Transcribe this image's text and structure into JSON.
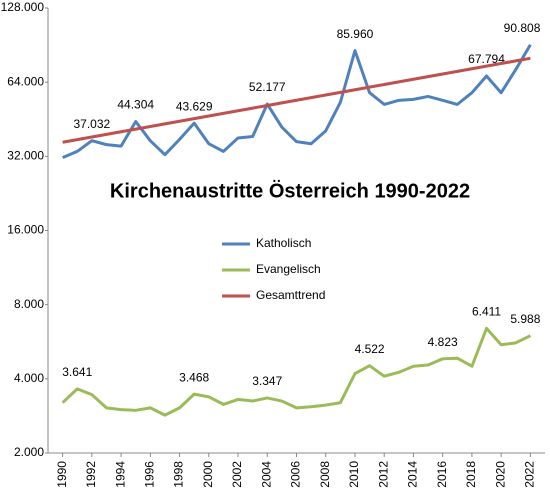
{
  "chart_data": {
    "type": "line",
    "title": "Kirchenaustritte Österreich 1990-2022",
    "x": [
      1990,
      1991,
      1992,
      1993,
      1994,
      1995,
      1996,
      1997,
      1998,
      1999,
      2000,
      2001,
      2002,
      2003,
      2004,
      2005,
      2006,
      2007,
      2008,
      2009,
      2010,
      2011,
      2012,
      2013,
      2014,
      2015,
      2016,
      2017,
      2018,
      2019,
      2020,
      2021,
      2022
    ],
    "xlim": [
      1989,
      2023
    ],
    "xticks": [
      1990,
      1992,
      1994,
      1996,
      1998,
      2000,
      2002,
      2004,
      2006,
      2008,
      2010,
      2012,
      2014,
      2016,
      2018,
      2020,
      2022
    ],
    "ylim": [
      2000,
      128000
    ],
    "log_scale": true,
    "yticks": [
      {
        "value": 2000,
        "label": "2.000"
      },
      {
        "value": 4000,
        "label": "4.000"
      },
      {
        "value": 8000,
        "label": "8.000"
      },
      {
        "value": 16000,
        "label": "16.000"
      },
      {
        "value": 32000,
        "label": "32.000"
      },
      {
        "value": 64000,
        "label": "64.000"
      },
      {
        "value": 128000,
        "label": "128.000"
      }
    ],
    "grid": false,
    "series": [
      {
        "name": "Katholisch",
        "color": "#4f81bd",
        "values": [
          31600,
          33500,
          37032,
          35700,
          35200,
          44304,
          37000,
          32500,
          37500,
          43629,
          36000,
          33500,
          38000,
          38500,
          52177,
          42000,
          36700,
          36000,
          40600,
          53000,
          85960,
          58000,
          52000,
          54000,
          54500,
          56000,
          54000,
          52000,
          58000,
          67794,
          58000,
          72000,
          90808
        ],
        "value_labels": [
          null,
          null,
          "37.032",
          null,
          null,
          "44.304",
          null,
          null,
          null,
          "43.629",
          null,
          null,
          null,
          null,
          "52.177",
          null,
          null,
          null,
          null,
          null,
          "85.960",
          null,
          null,
          null,
          null,
          null,
          null,
          null,
          null,
          "67.794",
          null,
          null,
          "90.808"
        ]
      },
      {
        "name": "Evangelisch",
        "color": "#9bbb59",
        "values": [
          3200,
          3641,
          3450,
          3050,
          3000,
          2980,
          3050,
          2850,
          3050,
          3468,
          3380,
          3150,
          3300,
          3250,
          3347,
          3250,
          3050,
          3080,
          3130,
          3200,
          4200,
          4522,
          4100,
          4250,
          4500,
          4550,
          4823,
          4850,
          4500,
          6411,
          5500,
          5600,
          5988
        ],
        "value_labels": [
          null,
          "3.641",
          null,
          null,
          null,
          null,
          null,
          null,
          null,
          "3.468",
          null,
          null,
          null,
          null,
          "3.347",
          null,
          null,
          null,
          null,
          null,
          null,
          "4.522",
          null,
          null,
          null,
          null,
          "4.823",
          null,
          null,
          "6.411",
          null,
          null,
          "5.988"
        ]
      },
      {
        "name": "Gesamttrend",
        "color": "#c0504d",
        "values": [
          36500,
          37400,
          38330,
          39290,
          40270,
          41270,
          42290,
          43340,
          44420,
          45520,
          46650,
          47810,
          49000,
          50210,
          51460,
          52740,
          54050,
          55390,
          56760,
          58170,
          59620,
          61100,
          62610,
          64170,
          65760,
          67390,
          69070,
          70780,
          72540,
          74340,
          76180,
          78070,
          80000
        ]
      }
    ]
  }
}
